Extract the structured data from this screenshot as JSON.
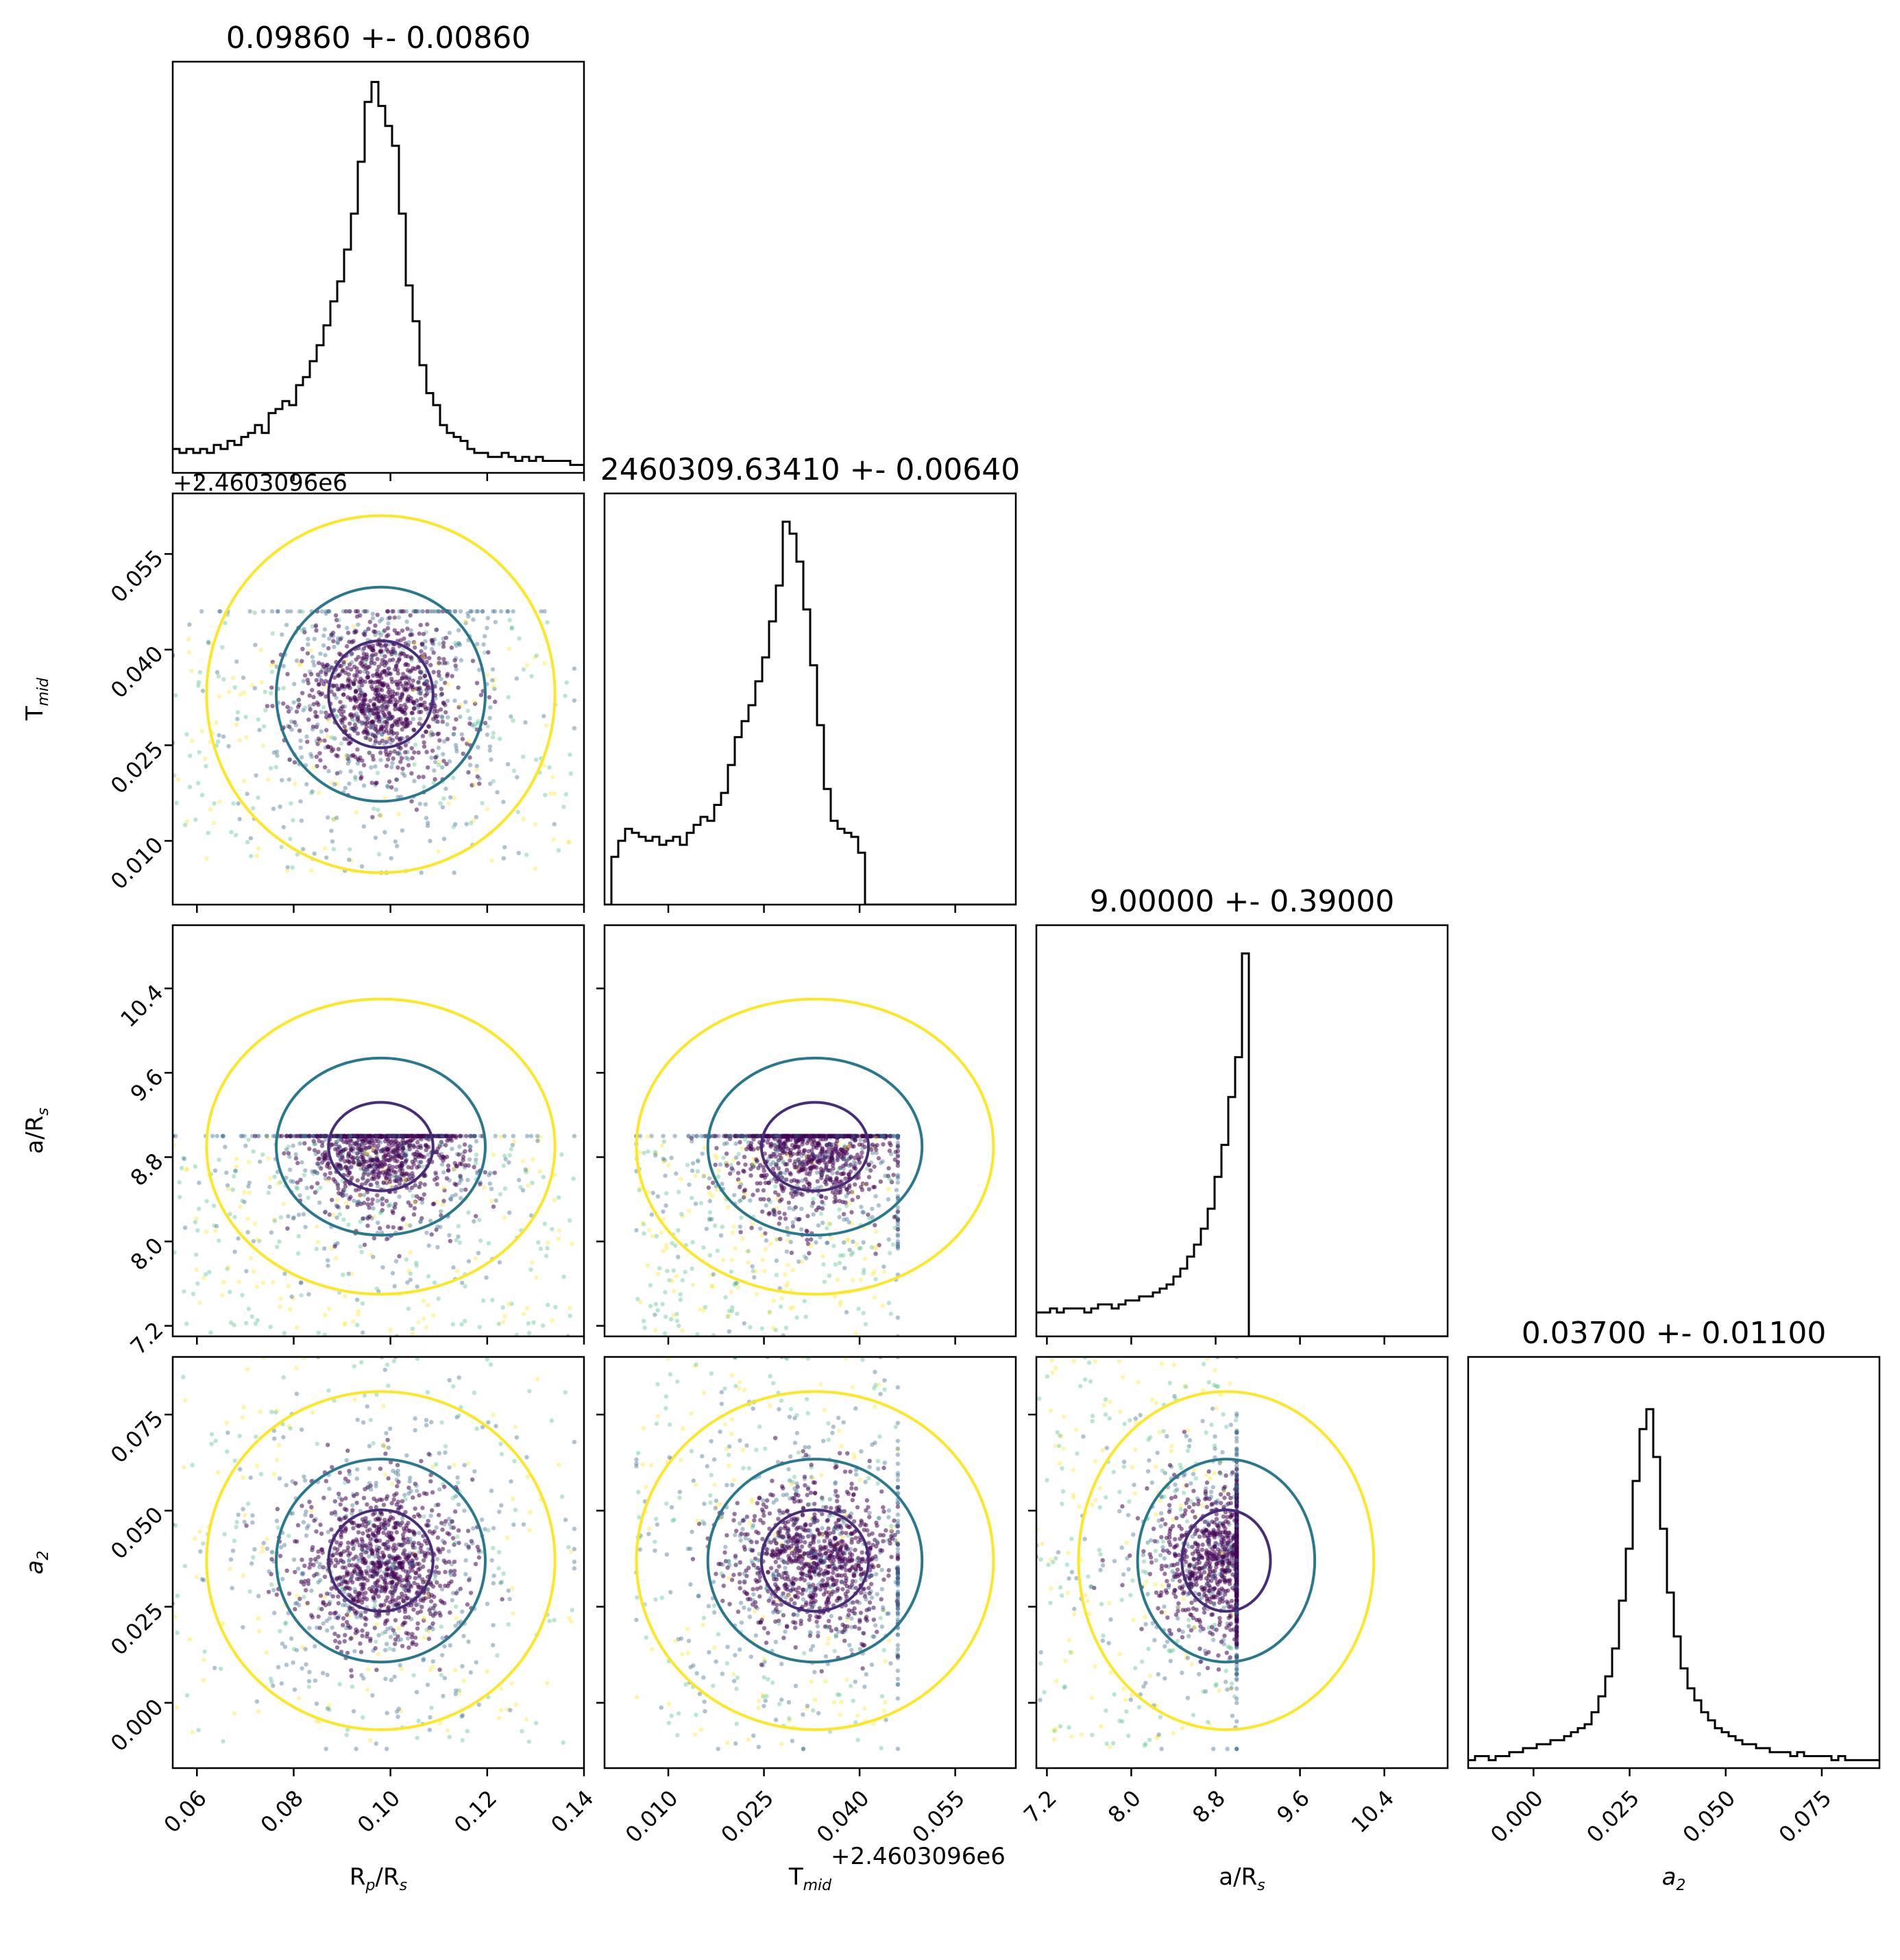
{
  "chart_data": {
    "type": "corner",
    "parameters": [
      {
        "key": "rp",
        "label_main": "R",
        "label_sub": "p",
        "label_tail": "/R",
        "label_tail_sub": "s",
        "title": "0.09860 +- 0.00860",
        "range": [
          0.055,
          0.14
        ],
        "ticks": [
          "0.06",
          "0.08",
          "0.10",
          "0.12",
          "0.14"
        ],
        "tick_values": [
          0.06,
          0.08,
          0.1,
          0.12,
          0.14
        ]
      },
      {
        "key": "tmid",
        "label_main": "T",
        "label_sub": "mid",
        "label_tail": "",
        "label_tail_sub": "",
        "title": "2460309.63410 +- 0.00640",
        "offset_text": "+2.4603096e6",
        "range": [
          0.0,
          0.0645
        ],
        "ticks": [
          "0.010",
          "0.025",
          "0.040",
          "0.055"
        ],
        "tick_values": [
          0.01,
          0.025,
          0.04,
          0.055
        ]
      },
      {
        "key": "ars",
        "label_main": "a/R",
        "label_sub": "s",
        "label_tail": "",
        "label_tail_sub": "",
        "title": "9.00000 +- 0.39000",
        "range": [
          7.1,
          11.0
        ],
        "ticks": [
          "7.2",
          "8.0",
          "8.8",
          "9.6",
          "10.4"
        ],
        "tick_values": [
          7.2,
          8.0,
          8.8,
          9.6,
          10.4
        ]
      },
      {
        "key": "a2",
        "label_main": "a",
        "label_sub": "2",
        "label_tail": "",
        "label_tail_sub": "",
        "italic": true,
        "title": "0.03700 +- 0.01100",
        "range": [
          -0.017,
          0.09
        ],
        "ticks": [
          "0.000",
          "0.025",
          "0.050",
          "0.075"
        ],
        "tick_values": [
          0.0,
          0.025,
          0.05,
          0.075
        ]
      }
    ],
    "histograms": {
      "rp": [
        0.06,
        0.05,
        0.06,
        0.05,
        0.06,
        0.05,
        0.07,
        0.06,
        0.08,
        0.07,
        0.09,
        0.1,
        0.12,
        0.1,
        0.15,
        0.16,
        0.18,
        0.17,
        0.22,
        0.24,
        0.28,
        0.32,
        0.37,
        0.43,
        0.48,
        0.56,
        0.65,
        0.78,
        0.93,
        0.98,
        0.92,
        0.87,
        0.82,
        0.65,
        0.47,
        0.38,
        0.27,
        0.2,
        0.17,
        0.12,
        0.1,
        0.09,
        0.08,
        0.06,
        0.05,
        0.05,
        0.04,
        0.04,
        0.05,
        0.04,
        0.03,
        0.04,
        0.03,
        0.04,
        0.03,
        0.03,
        0.03,
        0.03,
        0.02,
        0.02
      ],
      "tmid": [
        0.0,
        0.12,
        0.16,
        0.19,
        0.18,
        0.17,
        0.16,
        0.17,
        0.15,
        0.16,
        0.17,
        0.15,
        0.18,
        0.2,
        0.22,
        0.21,
        0.25,
        0.28,
        0.35,
        0.42,
        0.46,
        0.5,
        0.56,
        0.62,
        0.71,
        0.8,
        0.96,
        0.93,
        0.86,
        0.74,
        0.6,
        0.45,
        0.29,
        0.21,
        0.19,
        0.18,
        0.17,
        0.13,
        0.0,
        0.0,
        0.0,
        0.0,
        0.0,
        0.0,
        0.0,
        0.0,
        0.0,
        0.0,
        0.0,
        0.0,
        0.0,
        0.0,
        0.0,
        0.0,
        0.0,
        0.0,
        0.0,
        0.0,
        0.0,
        0.0
      ],
      "ars": [
        0.06,
        0.06,
        0.07,
        0.06,
        0.07,
        0.07,
        0.07,
        0.06,
        0.07,
        0.08,
        0.08,
        0.07,
        0.08,
        0.09,
        0.09,
        0.1,
        0.1,
        0.11,
        0.12,
        0.13,
        0.15,
        0.17,
        0.2,
        0.23,
        0.27,
        0.32,
        0.4,
        0.48,
        0.6,
        0.7,
        0.96,
        0.0,
        0.0,
        0.0,
        0.0,
        0.0,
        0.0,
        0.0,
        0.0,
        0.0,
        0.0,
        0.0,
        0.0,
        0.0,
        0.0,
        0.0,
        0.0,
        0.0,
        0.0,
        0.0,
        0.0,
        0.0,
        0.0,
        0.0,
        0.0,
        0.0,
        0.0,
        0.0,
        0.0,
        0.0
      ],
      "a2": [
        0.02,
        0.03,
        0.03,
        0.02,
        0.03,
        0.03,
        0.04,
        0.04,
        0.05,
        0.05,
        0.06,
        0.06,
        0.07,
        0.07,
        0.08,
        0.09,
        0.1,
        0.11,
        0.14,
        0.18,
        0.23,
        0.3,
        0.42,
        0.55,
        0.72,
        0.85,
        0.9,
        0.78,
        0.6,
        0.44,
        0.33,
        0.25,
        0.2,
        0.17,
        0.14,
        0.12,
        0.1,
        0.09,
        0.08,
        0.07,
        0.06,
        0.06,
        0.05,
        0.05,
        0.04,
        0.04,
        0.04,
        0.03,
        0.04,
        0.03,
        0.03,
        0.03,
        0.03,
        0.02,
        0.03,
        0.02,
        0.02,
        0.02,
        0.02,
        0.02
      ]
    },
    "samples": {
      "rp": {
        "mean": 0.098,
        "sd": 0.009,
        "min": 0.055,
        "max": 0.138
      },
      "tmid": {
        "mean": 0.033,
        "sd": 0.007,
        "min": 0.005,
        "max": 0.046
      },
      "ars": {
        "mean": 8.9,
        "sd": 0.35,
        "min": 7.1,
        "max": 9.0
      },
      "a2": {
        "mean": 0.037,
        "sd": 0.011,
        "min": -0.012,
        "max": 0.09
      }
    },
    "colormap": [
      "#440154",
      "#31688e",
      "#35b779",
      "#fde725"
    ],
    "contour_colors": {
      "inner": "#472c7a",
      "middle": "#2a788e",
      "outer": "#fde725"
    },
    "grid": false,
    "legend": "none"
  }
}
